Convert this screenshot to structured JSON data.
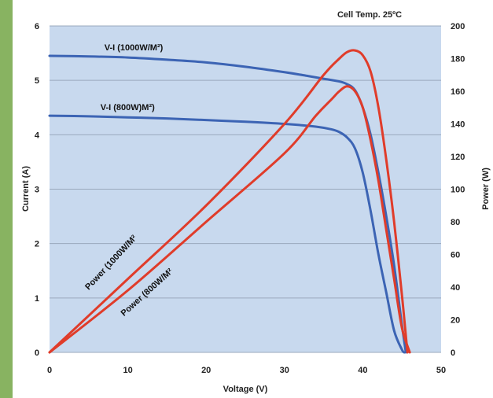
{
  "chart_data": {
    "type": "line",
    "title": "Cell Temp. 25ºC",
    "xlabel": "Voltage (V)",
    "ylabel_left": "Current (A)",
    "ylabel_right": "Power (W)",
    "xlim": [
      0,
      50
    ],
    "ylim_left": [
      0,
      6
    ],
    "ylim_right": [
      0,
      200
    ],
    "x_ticks": [
      "0",
      "10",
      "20",
      "30",
      "40",
      "50"
    ],
    "y_left_ticks": [
      "0",
      "1",
      "2",
      "3",
      "4",
      "5",
      "6"
    ],
    "y_right_ticks": [
      "0",
      "20",
      "40",
      "60",
      "80",
      "100",
      "120",
      "140",
      "160",
      "180",
      "200"
    ],
    "grid": true,
    "plot_background": "#c8d9ee",
    "series": [
      {
        "name": "V-I (1000W/M²)",
        "axis": "left",
        "color": "#3c64b4",
        "x": [
          0,
          5,
          10,
          15,
          20,
          25,
          30,
          33,
          35,
          37,
          38,
          39,
          40,
          41,
          42,
          43,
          44,
          45,
          45.5
        ],
        "y": [
          5.45,
          5.44,
          5.42,
          5.38,
          5.33,
          5.25,
          5.15,
          5.08,
          5.03,
          4.98,
          4.93,
          4.82,
          4.5,
          4.0,
          3.3,
          2.5,
          1.6,
          0.5,
          0
        ]
      },
      {
        "name": "V-I (800W)M²)",
        "axis": "left",
        "color": "#3c64b4",
        "x": [
          0,
          5,
          10,
          15,
          20,
          25,
          30,
          34,
          36,
          37,
          38,
          39,
          40,
          41,
          42,
          43,
          44,
          45,
          45.3
        ],
        "y": [
          4.35,
          4.34,
          4.32,
          4.3,
          4.27,
          4.24,
          4.2,
          4.15,
          4.1,
          4.05,
          3.95,
          3.75,
          3.3,
          2.6,
          1.8,
          1.1,
          0.4,
          0.05,
          0
        ]
      },
      {
        "name": "Power (1000W/M²",
        "axis": "right",
        "color": "#e03c2a",
        "x": [
          0,
          10,
          20,
          30,
          35,
          37,
          38,
          39,
          40,
          41,
          42,
          43,
          44,
          45,
          45.7
        ],
        "y": [
          0,
          45,
          90,
          140,
          170,
          180,
          184,
          185,
          182,
          172,
          150,
          118,
          80,
          35,
          0
        ]
      },
      {
        "name": "Power (800W/M²",
        "axis": "right",
        "color": "#e03c2a",
        "x": [
          0,
          10,
          20,
          30,
          34,
          36,
          37,
          38,
          39,
          40,
          41,
          42,
          43,
          44,
          45,
          46
        ],
        "y": [
          0,
          38,
          80,
          122,
          145,
          155,
          160,
          163,
          160,
          150,
          130,
          105,
          75,
          45,
          15,
          0
        ]
      }
    ],
    "annotations": [
      {
        "text": "V-I (1000W/M²)",
        "x": 7,
        "y": 5.55,
        "axis": "left",
        "rotate": 0
      },
      {
        "text": "V-I (800W)M²)",
        "x": 6.5,
        "y": 4.45,
        "axis": "left",
        "rotate": 0
      },
      {
        "text": "Power (1000W/M²",
        "x": 5,
        "y": 38,
        "axis": "right",
        "rotate": -47
      },
      {
        "text": "Power (800W/M²",
        "x": 9.5,
        "y": 22,
        "axis": "right",
        "rotate": -42
      }
    ]
  }
}
